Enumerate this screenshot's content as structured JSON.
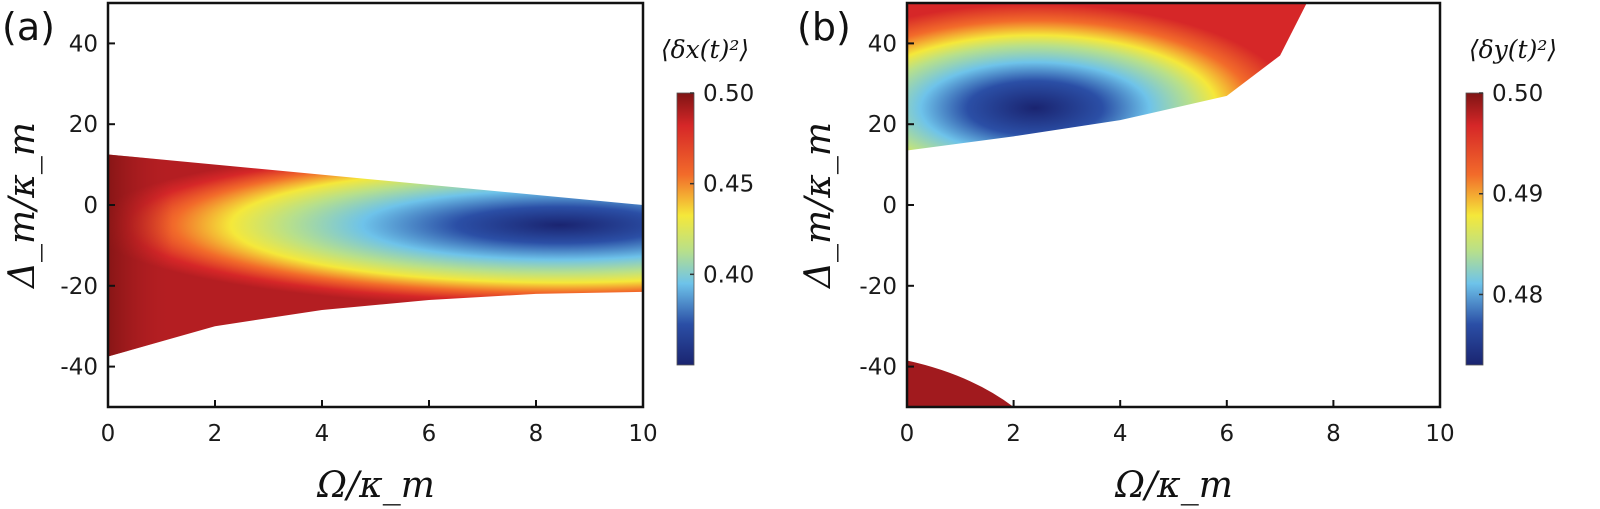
{
  "colors": {
    "red": "#d62728",
    "darkred": "#7f1414",
    "orange": "#f26b2a",
    "yellow": "#f5e83a",
    "cyan": "#6ec3ea",
    "blue": "#2b4fa6",
    "navy": "#1a2470"
  },
  "chart_data": [
    {
      "type": "heatmap",
      "panel_label": "(a)",
      "title": "",
      "xlabel": "Ω/κ_m",
      "ylabel": "Δ_m/κ_m",
      "xlim": [
        0,
        10
      ],
      "ylim": [
        -50,
        50
      ],
      "xticks": [
        "0",
        "2",
        "4",
        "6",
        "8",
        "10"
      ],
      "yticks": [
        "40",
        "20",
        "0",
        "-20",
        "-40"
      ],
      "colorbar_title": "⟨δx(t)²⟩",
      "colorbar_ticks": [
        "0.50",
        "0.45",
        "0.40"
      ],
      "colorbar_range": [
        0.35,
        0.5
      ],
      "region_upper_boundary": {
        "x": [
          0,
          10
        ],
        "y": [
          12.5,
          0
        ]
      },
      "region_lower_boundary": {
        "x": [
          0,
          2,
          4,
          6,
          8,
          10
        ],
        "y": [
          -37.5,
          -30,
          -26,
          -23.5,
          -22,
          -21.5
        ]
      },
      "minimum_location": {
        "x": 8,
        "y": -5
      }
    },
    {
      "type": "heatmap",
      "panel_label": "(b)",
      "title": "",
      "xlabel": "Ω/κ_m",
      "ylabel": "Δ_m/κ_m",
      "xlim": [
        0,
        10
      ],
      "ylim": [
        -50,
        50
      ],
      "xticks": [
        "0",
        "2",
        "4",
        "6",
        "8",
        "10"
      ],
      "yticks": [
        "40",
        "20",
        "0",
        "-20",
        "-40"
      ],
      "colorbar_title": "⟨δy(t)²⟩",
      "colorbar_ticks": [
        "0.50",
        "0.49",
        "0.48"
      ],
      "colorbar_range": [
        0.473,
        0.5
      ],
      "region_lower_boundary": {
        "x": [
          0,
          2,
          4,
          6,
          7,
          7.5
        ],
        "y": [
          13.5,
          17,
          21,
          27,
          37,
          50
        ]
      },
      "corner_region": {
        "x": [
          0,
          2
        ],
        "y": [
          -38.5,
          -50
        ]
      },
      "minimum_location": {
        "x": 2.7,
        "y": 24
      }
    }
  ]
}
